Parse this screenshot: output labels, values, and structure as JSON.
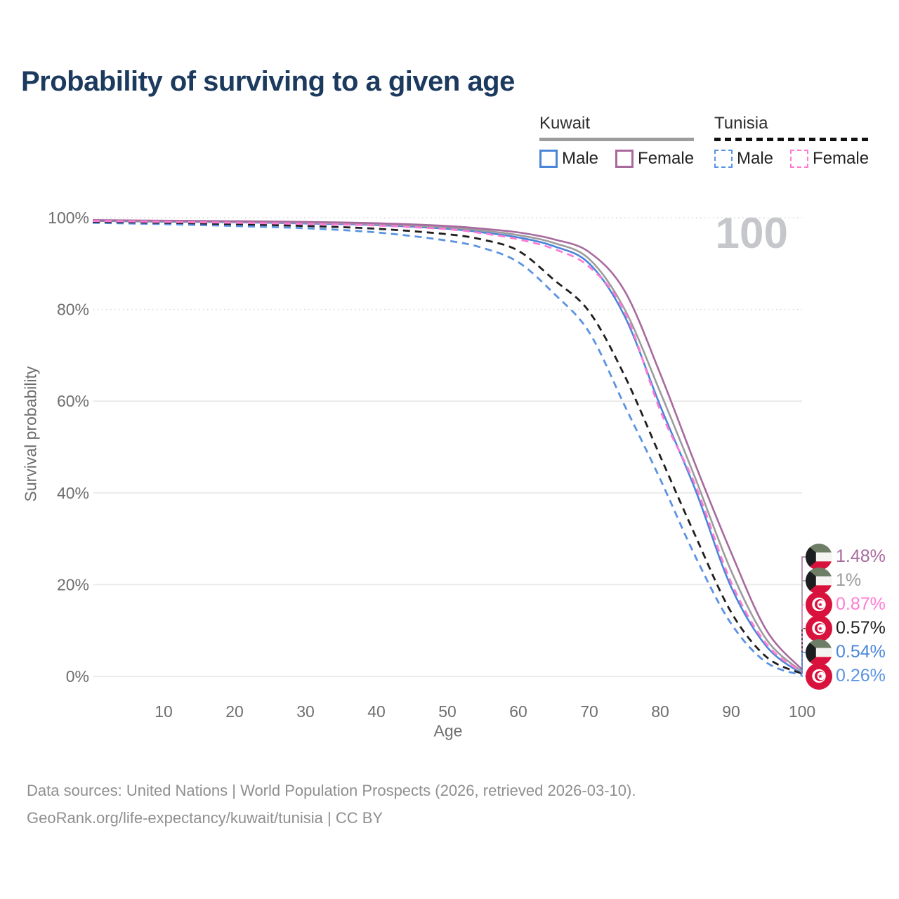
{
  "title": "Probability of surviving to a given age",
  "watermark_age": "100",
  "legend": {
    "groups": [
      {
        "label": "Kuwait",
        "line_style": "solid",
        "underline_color": "#9c9c9c",
        "items": [
          {
            "label": "Male",
            "color": "#4a86d8"
          },
          {
            "label": "Female",
            "color": "#a86a9e"
          }
        ]
      },
      {
        "label": "Tunisia",
        "line_style": "dashed",
        "underline_color": "#1a1a1a",
        "items": [
          {
            "label": "Male",
            "color": "#5b93e3"
          },
          {
            "label": "Female",
            "color": "#ff7bd4"
          }
        ]
      }
    ]
  },
  "chart_data": {
    "type": "line",
    "title": "Probability of surviving to a given age",
    "xlabel": "Age",
    "ylabel": "Survival probability",
    "xlim": [
      0,
      100
    ],
    "ylim": [
      0,
      100
    ],
    "grid": "horizontal",
    "legend_position": "top-right",
    "hovered_age": "100",
    "x_ticks": [
      10,
      20,
      30,
      40,
      50,
      60,
      70,
      80,
      90,
      100
    ],
    "y_ticks": [
      {
        "label": "100%",
        "value": 100,
        "dotted": true
      },
      {
        "label": "80%",
        "value": 80,
        "dotted": true
      },
      {
        "label": "60%",
        "value": 60,
        "dotted": false
      },
      {
        "label": "40%",
        "value": 40,
        "dotted": false
      },
      {
        "label": "20%",
        "value": 20,
        "dotted": false
      },
      {
        "label": "0%",
        "value": 0,
        "dotted": false
      }
    ],
    "ages": [
      0,
      10,
      20,
      30,
      40,
      50,
      55,
      60,
      65,
      70,
      75,
      80,
      85,
      90,
      95,
      100
    ],
    "series": [
      {
        "id": "kuwait-male",
        "country": "Kuwait",
        "sex": "Male",
        "color": "#4a86d8",
        "dashed": false,
        "flag": "kuwait",
        "end_label": "0.54%",
        "values": [
          99.3,
          99.15,
          99.0,
          98.75,
          98.4,
          97.6,
          96.8,
          95.7,
          93.8,
          90.0,
          78.5,
          59,
          40.5,
          19.5,
          6.5,
          0.54
        ]
      },
      {
        "id": "kuwait-all",
        "country": "Kuwait",
        "sex": "All",
        "color": "#9c9c9c",
        "dashed": false,
        "flag": "kuwait",
        "end_label": "1%",
        "values": [
          99.4,
          99.25,
          99.1,
          98.9,
          98.6,
          97.9,
          97.2,
          96.2,
          94.5,
          91.0,
          80,
          62,
          43,
          23,
          8,
          1.0
        ]
      },
      {
        "id": "kuwait-female",
        "country": "Kuwait",
        "sex": "Female",
        "color": "#a86a9e",
        "dashed": false,
        "flag": "kuwait",
        "end_label": "1.48%",
        "values": [
          99.5,
          99.35,
          99.25,
          99.1,
          98.8,
          98.2,
          97.6,
          96.8,
          95.3,
          92.5,
          84,
          66,
          46,
          27,
          10,
          1.48
        ]
      },
      {
        "id": "tunisia-male",
        "country": "Tunisia",
        "sex": "Male",
        "color": "#5b93e3",
        "dashed": true,
        "flag": "tunisia",
        "end_label": "0.26%",
        "values": [
          98.9,
          98.6,
          98.2,
          97.7,
          96.8,
          95.0,
          93.4,
          90.3,
          83.5,
          75.0,
          59,
          43,
          26,
          11.5,
          3,
          0.26
        ]
      },
      {
        "id": "tunisia-all",
        "country": "Tunisia",
        "sex": "All",
        "color": "#1f1f1f",
        "dashed": true,
        "flag": "tunisia",
        "end_label": "0.57%",
        "values": [
          99.1,
          98.9,
          98.6,
          98.2,
          97.6,
          96.4,
          95.2,
          92.8,
          86.5,
          79.5,
          65.5,
          48,
          30.5,
          14,
          4.2,
          0.57
        ]
      },
      {
        "id": "tunisia-female",
        "country": "Tunisia",
        "sex": "Female",
        "color": "#ff7bd4",
        "dashed": true,
        "flag": "tunisia",
        "end_label": "0.87%",
        "values": [
          99.3,
          99.1,
          98.9,
          98.65,
          98.3,
          97.5,
          96.6,
          95.3,
          93.2,
          89.3,
          79.5,
          58,
          41.5,
          20.5,
          7,
          0.87
        ]
      }
    ]
  },
  "footer": {
    "line1": "Data sources: United Nations | World Population Prospects (2026, retrieved 2026-03-10).",
    "line2": "GeoRank.org/life-expectancy/kuwait/tunisia | CC BY"
  }
}
